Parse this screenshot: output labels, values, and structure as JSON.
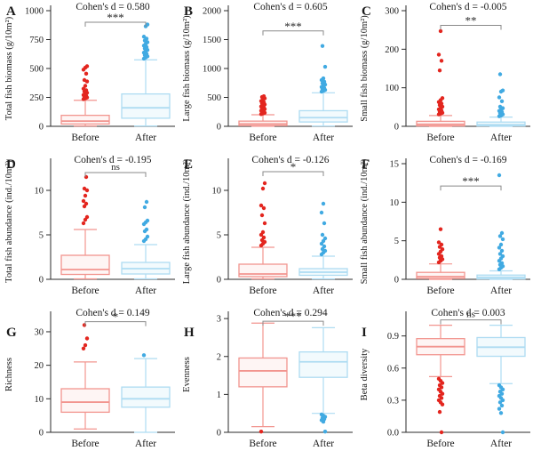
{
  "figure": {
    "groups": [
      "Before",
      "After"
    ],
    "colors": {
      "before_box": "#F2958F",
      "before_fill": "#FEF5F4",
      "before_dot": "#E3261F",
      "after_box": "#AEDCF2",
      "after_fill": "#F2FAFD",
      "after_dot": "#41AAE2",
      "bracket": "#8A8A8A",
      "axis": "#2B2B2B"
    }
  },
  "chart_data": [
    {
      "type": "box",
      "panel": "A",
      "title": "Cohen's d = 0.580",
      "significance": "***",
      "sig_y": 900,
      "ylabel": "Total fish biomass (g/10m²)",
      "ylim": [
        0,
        1000
      ],
      "yticks": [
        0,
        250,
        500,
        750,
        1000
      ],
      "ytick_labels": [
        "0",
        "250",
        "500",
        "750",
        "1000"
      ],
      "categories": [
        "Before",
        "After"
      ],
      "boxes": [
        {
          "group": "Before",
          "whislo": 3,
          "q1": 20,
          "med": 45,
          "q3": 95,
          "whishi": 225,
          "outliers": [
            235,
            242,
            249,
            256,
            263,
            271,
            280,
            290,
            300,
            312,
            325,
            350,
            388,
            400,
            455,
            490,
            507,
            520
          ]
        },
        {
          "group": "After",
          "whislo": 3,
          "q1": 70,
          "med": 160,
          "q3": 280,
          "whishi": 575,
          "outliers": [
            585,
            595,
            605,
            615,
            626,
            637,
            648,
            660,
            672,
            685,
            698,
            712,
            727,
            742,
            758,
            775,
            865,
            880
          ]
        }
      ]
    },
    {
      "type": "box",
      "panel": "B",
      "title": "Cohen's d = 0.605",
      "significance": "***",
      "sig_y": 1650,
      "ylabel": "Large fish biomass (g/10m²)",
      "ylim": [
        0,
        2000
      ],
      "yticks": [
        0,
        500,
        1000,
        1500,
        2000
      ],
      "ytick_labels": [
        "0",
        "500",
        "1000",
        "1500",
        "2000"
      ],
      "categories": [
        "Before",
        "After"
      ],
      "boxes": [
        {
          "group": "Before",
          "whislo": 2,
          "q1": 12,
          "med": 40,
          "q3": 90,
          "whishi": 200,
          "outliers": [
            210,
            222,
            234,
            246,
            258,
            271,
            284,
            298,
            312,
            327,
            343,
            360,
            378,
            397,
            417,
            438,
            460,
            483,
            507,
            520
          ]
        },
        {
          "group": "After",
          "whislo": 5,
          "q1": 75,
          "med": 150,
          "q3": 270,
          "whishi": 580,
          "outliers": [
            600,
            614,
            629,
            645,
            662,
            680,
            700,
            722,
            746,
            772,
            800,
            830,
            1030,
            1390
          ]
        }
      ]
    },
    {
      "type": "box",
      "panel": "C",
      "title": "Cohen's d = -0.005",
      "significance": "**",
      "sig_y": 262,
      "ylabel": "Small fish biomass (g/10m²)",
      "ylim": [
        0,
        300
      ],
      "yticks": [
        0,
        100,
        200,
        300
      ],
      "ytick_labels": [
        "0",
        "100",
        "200",
        "300"
      ],
      "categories": [
        "Before",
        "After"
      ],
      "boxes": [
        {
          "group": "Before",
          "whislo": 0,
          "q1": 1,
          "med": 5,
          "q3": 13,
          "whishi": 28,
          "outliers": [
            31,
            33,
            35,
            38,
            41,
            44,
            47,
            51,
            55,
            59,
            63,
            68,
            73,
            145,
            170,
            186,
            247
          ]
        },
        {
          "group": "After",
          "whislo": 0,
          "q1": 1,
          "med": 4,
          "q3": 11,
          "whishi": 24,
          "outliers": [
            26,
            28,
            31,
            34,
            37,
            40,
            43,
            47,
            51,
            65,
            75,
            90,
            93,
            135
          ]
        }
      ]
    },
    {
      "type": "box",
      "panel": "D",
      "title": "Cohen's d = -0.195",
      "significance": "ns",
      "sig_y": 12.0,
      "ylabel": "Total fish abundance (ind./10m²)",
      "ylim": [
        0,
        13
      ],
      "yticks": [
        0,
        5,
        10
      ],
      "ytick_labels": [
        "0",
        "5",
        "10"
      ],
      "categories": [
        "Before",
        "After"
      ],
      "boxes": [
        {
          "group": "Before",
          "whislo": 0.05,
          "q1": 0.55,
          "med": 1.1,
          "q3": 2.7,
          "whishi": 5.6,
          "outliers": [
            6.3,
            6.7,
            7.0,
            8.2,
            8.5,
            8.8,
            9.4,
            10.0,
            10.2,
            11.5
          ]
        },
        {
          "group": "After",
          "whislo": 0.05,
          "q1": 0.6,
          "med": 1.2,
          "q3": 1.9,
          "whishi": 3.9,
          "outliers": [
            4.3,
            4.5,
            4.8,
            5.4,
            5.6,
            6.2,
            6.4,
            6.6,
            8.1,
            8.7
          ]
        }
      ]
    },
    {
      "type": "box",
      "panel": "E",
      "title": "Cohen's d = -0.126",
      "significance": "*",
      "sig_y": 12.1,
      "ylabel": "Large fish abundance (ind./10m²)",
      "ylim": [
        0,
        13
      ],
      "yticks": [
        0,
        5,
        10
      ],
      "ytick_labels": [
        "0",
        "5",
        "10"
      ],
      "categories": [
        "Before",
        "After"
      ],
      "boxes": [
        {
          "group": "Before",
          "whislo": 0.05,
          "q1": 0.3,
          "med": 0.6,
          "q3": 1.7,
          "whishi": 3.6,
          "outliers": [
            3.8,
            4.0,
            4.2,
            4.4,
            4.7,
            5.0,
            5.3,
            6.3,
            7.2,
            8.0,
            8.3,
            10.2,
            10.8
          ]
        },
        {
          "group": "After",
          "whislo": 0.05,
          "q1": 0.45,
          "med": 0.8,
          "q3": 1.2,
          "whishi": 2.6,
          "outliers": [
            2.8,
            3.0,
            3.2,
            3.4,
            3.7,
            4.0,
            4.3,
            4.6,
            5.0,
            6.3,
            7.5,
            8.5
          ]
        }
      ]
    },
    {
      "type": "box",
      "panel": "F",
      "title": "Cohen's d = -0.169",
      "significance": "***",
      "sig_y": 12.1,
      "ylabel": "Small fish abundance (ind./10m²)",
      "ylim": [
        0,
        15
      ],
      "yticks": [
        0,
        5,
        10,
        15
      ],
      "ytick_labels": [
        "0",
        "5",
        "10",
        "15"
      ],
      "categories": [
        "Before",
        "After"
      ],
      "boxes": [
        {
          "group": "Before",
          "whislo": 0,
          "q1": 0.1,
          "med": 0.35,
          "q3": 0.9,
          "whishi": 2.0,
          "outliers": [
            2.2,
            2.4,
            2.6,
            2.8,
            3.0,
            3.3,
            3.6,
            3.9,
            4.2,
            4.5,
            4.8,
            6.5
          ]
        },
        {
          "group": "After",
          "whislo": 0,
          "q1": 0.05,
          "med": 0.25,
          "q3": 0.55,
          "whishi": 1.1,
          "outliers": [
            1.3,
            1.5,
            1.7,
            1.9,
            2.1,
            2.4,
            2.7,
            3.0,
            3.3,
            3.7,
            4.1,
            4.5,
            5.2,
            5.6,
            6.0,
            13.5
          ]
        }
      ]
    },
    {
      "type": "box",
      "panel": "G",
      "title": "Cohen's d = 0.149",
      "significance": "*",
      "sig_y": 33,
      "ylabel": "Richness",
      "ylim": [
        0,
        34.5
      ],
      "yticks": [
        0,
        10,
        20,
        30
      ],
      "ytick_labels": [
        "0",
        "10",
        "20",
        "30"
      ],
      "categories": [
        "Before",
        "After"
      ],
      "boxes": [
        {
          "group": "Before",
          "whislo": 1,
          "q1": 6,
          "med": 9,
          "q3": 13,
          "whishi": 21,
          "outliers": [
            25,
            26,
            28,
            32
          ]
        },
        {
          "group": "After",
          "whislo": 0,
          "q1": 7.5,
          "med": 10,
          "q3": 13.5,
          "whishi": 22,
          "outliers": [
            23
          ]
        }
      ]
    },
    {
      "type": "box",
      "panel": "H",
      "title": "Cohen's d = 0.294",
      "significance": "***",
      "sig_y": 2.93,
      "ylabel": "Evenness",
      "ylim": [
        0,
        3.05
      ],
      "yticks": [
        0,
        1,
        2,
        3
      ],
      "ytick_labels": [
        "0",
        "1",
        "2",
        "3"
      ],
      "categories": [
        "Before",
        "After"
      ],
      "boxes": [
        {
          "group": "Before",
          "whislo": 0.15,
          "q1": 1.2,
          "med": 1.62,
          "q3": 1.96,
          "whishi": 2.88,
          "outliers": [
            0.02
          ]
        },
        {
          "group": "After",
          "whislo": 0.5,
          "q1": 1.45,
          "med": 1.86,
          "q3": 2.12,
          "whishi": 2.76,
          "outliers": [
            0.47,
            0.44,
            0.41,
            0.38,
            0.35,
            0.32,
            0.28,
            0.02
          ]
        }
      ]
    },
    {
      "type": "box",
      "panel": "I",
      "title": "Cohen's d = 0.003",
      "significance": "ns",
      "sig_y": 1.05,
      "ylabel": "Beta diversity",
      "ylim": [
        0,
        1.08
      ],
      "yticks": [
        0.0,
        0.3,
        0.6,
        0.9
      ],
      "ytick_labels": [
        "0.0",
        "0.3",
        "0.6",
        "0.9"
      ],
      "categories": [
        "Before",
        "After"
      ],
      "boxes": [
        {
          "group": "Before",
          "whislo": 0.52,
          "q1": 0.725,
          "med": 0.8,
          "q3": 0.875,
          "whishi": 1.0,
          "outliers": [
            0.5,
            0.48,
            0.46,
            0.44,
            0.42,
            0.4,
            0.38,
            0.36,
            0.34,
            0.32,
            0.3,
            0.28,
            0.26,
            0.19,
            0.0
          ]
        },
        {
          "group": "After",
          "whislo": 0.455,
          "q1": 0.71,
          "med": 0.795,
          "q3": 0.885,
          "whishi": 1.0,
          "outliers": [
            0.44,
            0.42,
            0.4,
            0.38,
            0.36,
            0.34,
            0.32,
            0.3,
            0.28,
            0.25,
            0.22,
            0.18,
            0.0
          ]
        }
      ]
    }
  ]
}
